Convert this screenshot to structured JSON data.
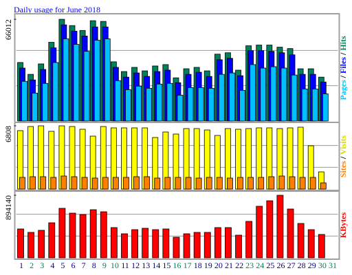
{
  "chart_data": [
    {
      "type": "bar",
      "title": "Daily usage for June 2018",
      "categories": [
        "1",
        "2",
        "3",
        "4",
        "5",
        "6",
        "7",
        "8",
        "9",
        "10",
        "11",
        "12",
        "13",
        "14",
        "15",
        "16",
        "17",
        "18",
        "19",
        "20",
        "21",
        "22",
        "23",
        "24",
        "25",
        "26",
        "27",
        "28",
        "29",
        "30",
        "31"
      ],
      "category_colors": [
        "#000080",
        "#00805c",
        "#00805c",
        "#000080",
        "#000080",
        "#000080",
        "#000080",
        "#000080",
        "#00805c",
        "#00805c",
        "#000080",
        "#000080",
        "#000080",
        "#000080",
        "#000080",
        "#00805c",
        "#00805c",
        "#000080",
        "#000080",
        "#000080",
        "#000080",
        "#000080",
        "#00805c",
        "#00805c",
        "#000080",
        "#000080",
        "#000080",
        "#000080",
        "#000080",
        "#00805c",
        "#00805c"
      ],
      "legend_separator": "/",
      "series": [
        {
          "name": "Pages",
          "color": "#00c0ff",
          "values": [
            25770,
            18084,
            24414,
            37977,
            53348,
            49730,
            45210,
            52443,
            53348,
            26222,
            20345,
            22606,
            21249,
            23962,
            24414,
            16728,
            21701,
            21701,
            21249,
            30291,
            31195,
            19893,
            36620,
            34360,
            35264,
            34360,
            29838,
            20797,
            20797,
            17632,
            0
          ]
        },
        {
          "name": "Files",
          "color": "#0000ff",
          "values": [
            34360,
            26674,
            33455,
            47470,
            62395,
            58321,
            55156,
            61034,
            61033,
            34812,
            28482,
            31195,
            28934,
            32099,
            33003,
            24865,
            30291,
            31647,
            28934,
            39785,
            40689,
            29386,
            45662,
            45662,
            45210,
            44306,
            42950,
            30291,
            30291,
            25317,
            0
          ]
        },
        {
          "name": "Hits",
          "color": "#00805c",
          "values": [
            37977,
            30291,
            37072,
            51087,
            66012,
            61938,
            58773,
            65102,
            64650,
            38429,
            32099,
            34812,
            32551,
            35716,
            36620,
            28030,
            33908,
            34812,
            32551,
            43402,
            44306,
            33003,
            48827,
            49279,
            49279,
            47923,
            47018,
            33908,
            33908,
            28482,
            0
          ]
        }
      ],
      "ylim": [
        0,
        68719
      ],
      "yticks": [
        66012
      ]
    },
    {
      "type": "bar",
      "legend_separator": "/",
      "series": [
        {
          "name": "Sites",
          "color": "#ff8000",
          "values": [
            1258,
            1332,
            1332,
            1258,
            1406,
            1332,
            1258,
            1184,
            1258,
            1258,
            1258,
            1332,
            1332,
            1184,
            1258,
            1258,
            1258,
            1184,
            1258,
            1258,
            1184,
            1258,
            1258,
            1258,
            1332,
            1406,
            1332,
            1258,
            1258,
            666,
            0
          ]
        },
        {
          "name": "Visits",
          "color": "#ffff00",
          "values": [
            6290,
            6734,
            6808,
            6216,
            6808,
            6734,
            6438,
            5698,
            6734,
            6586,
            6586,
            6586,
            6586,
            5550,
            6142,
            5920,
            6512,
            6512,
            6364,
            5772,
            6512,
            6438,
            6512,
            6586,
            6586,
            6512,
            6586,
            6660,
            4662,
            1850,
            0
          ]
        }
      ],
      "ylim": [
        0,
        7030
      ],
      "yticks": [
        6808
      ]
    },
    {
      "type": "bar",
      "series": [
        {
          "name": "KBytes",
          "color": "#ff0000",
          "values": [
            412692,
            363562,
            393040,
            501126,
            707472,
            638690,
            619038,
            687820,
            658342,
            432344,
            343910,
            402866,
            422518,
            402866,
            412692,
            294780,
            343910,
            363562,
            363562,
            432344,
            432344,
            324258,
            520778,
            736950,
            815558,
            894140,
            697646,
            491300,
            402866,
            334084,
            0
          ]
        }
      ],
      "ylim": [
        0,
        933470
      ],
      "yticks": [
        894140
      ]
    }
  ]
}
